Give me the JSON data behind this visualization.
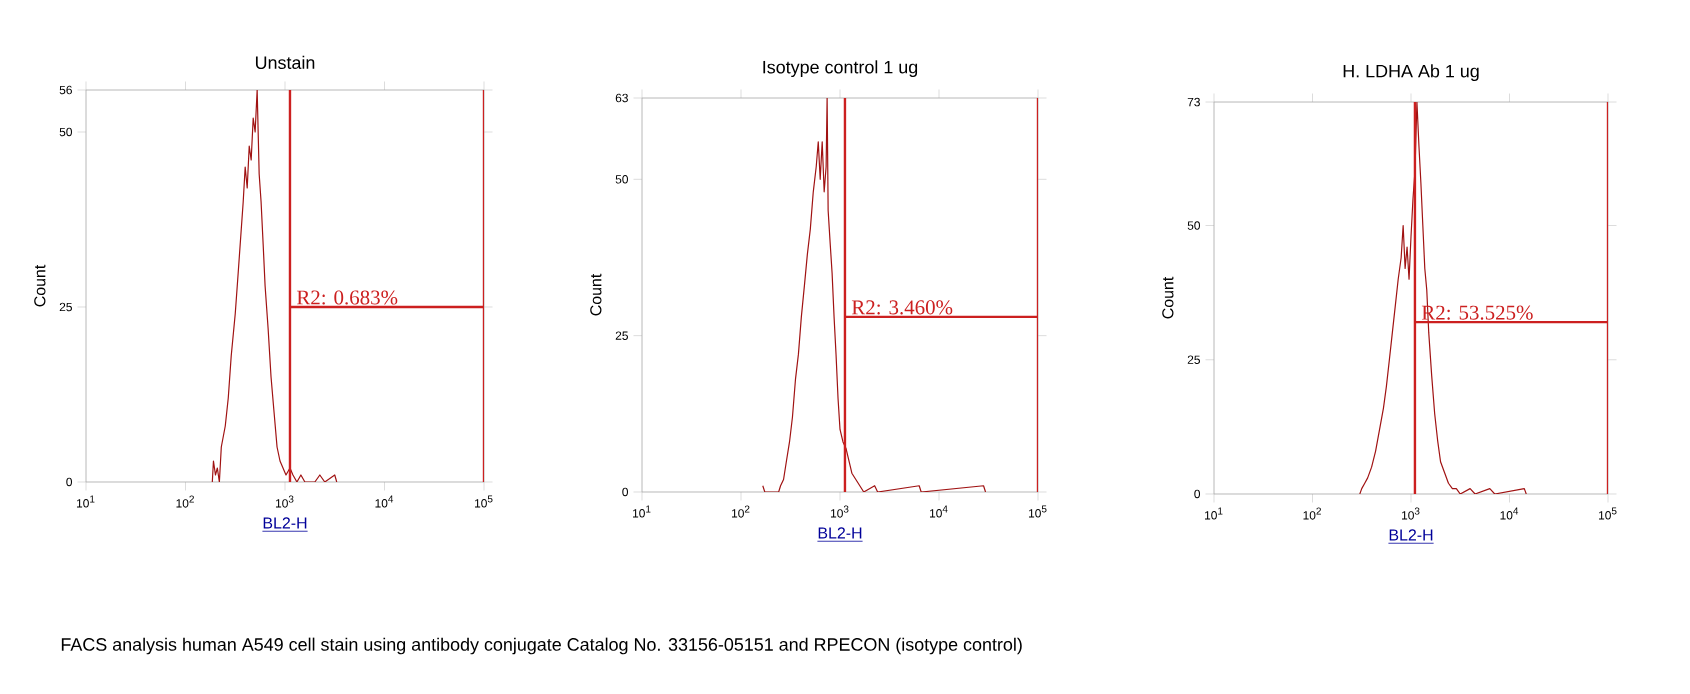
{
  "chart_data": [
    {
      "type": "line",
      "title": "Unstain",
      "xlabel": "BL2-H",
      "ylabel": "Count",
      "log": "x",
      "xlim": [
        10,
        100000
      ],
      "ylim": [
        0,
        56
      ],
      "xticks": [
        {
          "value": 10,
          "label": "10$^{1}$"
        },
        {
          "value": 100,
          "label": "10$^{2}$"
        },
        {
          "value": 1000,
          "label": "10$^{3}$"
        },
        {
          "value": 10000,
          "label": "10$^{4}$"
        },
        {
          "value": 100000,
          "label": "10$^{5}$"
        }
      ],
      "yticks": [
        0,
        25,
        50,
        56
      ],
      "series": [
        {
          "color": "#a01212",
          "x": [
            186,
            191,
            200,
            209,
            219,
            229,
            251,
            269,
            288,
            316,
            339,
            363,
            380,
            398,
            417,
            437,
            457,
            479,
            501,
            525,
            550,
            575,
            603,
            631,
            676,
            724,
            776,
            832,
            891,
            955,
            1023,
            1122,
            1202,
            1318,
            1445,
            1585,
            1995,
            2239,
            2512,
            3162,
            3311
          ],
          "values": [
            0,
            3,
            1,
            2,
            0,
            5,
            8,
            12,
            18,
            24,
            30,
            36,
            40,
            45,
            42,
            48,
            46,
            52,
            50,
            56,
            44,
            40,
            34,
            28,
            22,
            15,
            10,
            5,
            3,
            2,
            1,
            2,
            1,
            0,
            1,
            0,
            0,
            1,
            0,
            1,
            0
          ]
        }
      ],
      "ref_lines": [
        {
          "axis": "x",
          "value": 1122,
          "color": "#cc2020"
        },
        {
          "axis": "x",
          "value": 100000,
          "color": "#cc2020"
        },
        {
          "axis": "y",
          "value": 25,
          "color": "#cc2020"
        }
      ],
      "annotations": [
        "R2: 0.683%",
        "FACS analysis human A549 cell stain using antibody conjugate Catalog No. 33156-05151 and RPECON (isotype control)"
      ]
    },
    {
      "type": "line",
      "title": "Isotype control 1 ug",
      "xlabel": "BL2-H",
      "ylabel": "Count",
      "log": "x",
      "xlim": [
        10,
        100000
      ],
      "ylim": [
        0,
        63
      ],
      "xticks": [
        {
          "value": 10,
          "label": "10$^{1}$"
        },
        {
          "value": 100,
          "label": "10$^{2}$"
        },
        {
          "value": 1000,
          "label": "10$^{3}$"
        },
        {
          "value": 10000,
          "label": "10$^{4}$"
        },
        {
          "value": 100000,
          "label": "10$^{5}$"
        }
      ],
      "yticks": [
        0,
        25,
        50,
        63
      ],
      "series": [
        {
          "color": "#a01212",
          "x": [
            166,
            174,
            240,
            251,
            269,
            288,
            309,
            331,
            355,
            380,
            407,
            437,
            468,
            501,
            537,
            575,
            603,
            631,
            661,
            692,
            724,
            741,
            759,
            794,
            832,
            871,
            912,
            955,
            1000,
            1072,
            1148,
            1230,
            1318,
            1445,
            1585,
            1738,
            2239,
            2399,
            6310,
            6607,
            28184,
            29512
          ],
          "values": [
            1,
            0,
            0,
            1,
            2,
            5,
            8,
            12,
            18,
            22,
            28,
            33,
            38,
            42,
            48,
            52,
            56,
            50,
            56,
            48,
            52,
            63,
            45,
            40,
            35,
            28,
            22,
            15,
            10,
            8,
            7,
            5,
            3,
            2,
            1,
            0,
            1,
            0,
            1,
            0,
            1,
            0
          ]
        }
      ],
      "ref_lines": [
        {
          "axis": "x",
          "value": 1122,
          "color": "#cc2020"
        },
        {
          "axis": "x",
          "value": 100000,
          "color": "#cc2020"
        },
        {
          "axis": "y",
          "value": 28,
          "color": "#cc2020"
        }
      ],
      "annotations": [
        "R2: 3.460%"
      ]
    },
    {
      "type": "line",
      "title": "H. LDHA Ab 1 ug",
      "xlabel": "BL2-H",
      "ylabel": "Count",
      "log": "x",
      "xlim": [
        10,
        100000
      ],
      "ylim": [
        0,
        73
      ],
      "xticks": [
        {
          "value": 10,
          "label": "10$^{1}$"
        },
        {
          "value": 100,
          "label": "10$^{2}$"
        },
        {
          "value": 1000,
          "label": "10$^{3}$"
        },
        {
          "value": 10000,
          "label": "10$^{4}$"
        },
        {
          "value": 100000,
          "label": "10$^{5}$"
        }
      ],
      "yticks": [
        0,
        25,
        50,
        73
      ],
      "series": [
        {
          "color": "#a01212",
          "x": [
            302,
            316,
            339,
            363,
            398,
            437,
            479,
            525,
            562,
            603,
            646,
            692,
            741,
            794,
            832,
            871,
            912,
            955,
            1000,
            1047,
            1096,
            1148,
            1202,
            1259,
            1318,
            1380,
            1445,
            1514,
            1622,
            1738,
            1862,
            1995,
            2188,
            2399,
            2630,
            2884,
            3162,
            3981,
            4467,
            6310,
            7079,
            14125,
            14791
          ],
          "values": [
            0,
            1,
            2,
            3,
            5,
            8,
            12,
            16,
            20,
            25,
            30,
            35,
            40,
            44,
            50,
            42,
            46,
            40,
            48,
            55,
            60,
            73,
            65,
            58,
            50,
            42,
            38,
            30,
            22,
            15,
            10,
            6,
            4,
            2,
            1,
            1,
            0,
            1,
            0,
            1,
            0,
            1,
            0
          ]
        }
      ],
      "ref_lines": [
        {
          "axis": "x",
          "value": 1096,
          "color": "#cc2020"
        },
        {
          "axis": "x",
          "value": 100000,
          "color": "#cc2020"
        },
        {
          "axis": "y",
          "value": 32,
          "color": "#cc2020"
        }
      ],
      "annotations": [
        "R2: 53.525%"
      ]
    }
  ]
}
